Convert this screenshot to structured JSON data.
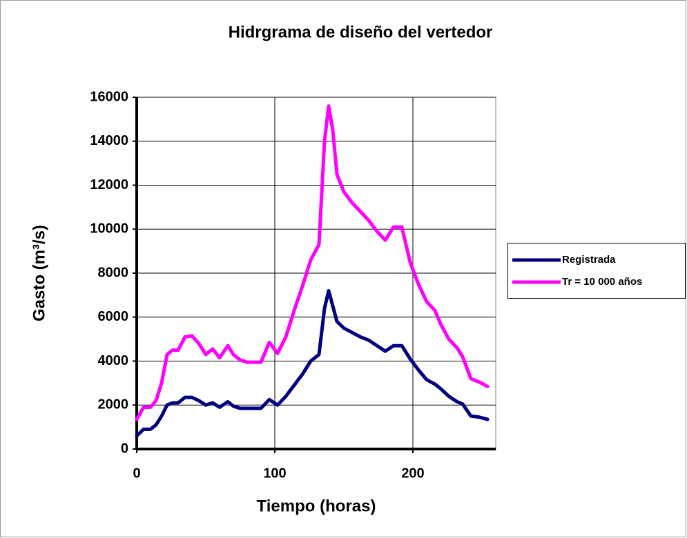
{
  "chart_data": {
    "type": "line",
    "title": "Hidrgrama de diseño del vertedor",
    "x_label": "Tiempo (horas)",
    "y_label": "Gasto (m³/s)",
    "x": [
      0,
      5,
      10,
      14,
      18,
      22,
      26,
      30,
      35,
      40,
      45,
      50,
      55,
      60,
      66,
      70,
      75,
      80,
      85,
      90,
      96,
      102,
      108,
      114,
      120,
      126,
      132,
      136,
      139,
      142,
      145,
      150,
      156,
      162,
      168,
      174,
      180,
      186,
      192,
      198,
      204,
      210,
      216,
      220,
      226,
      232,
      236,
      242,
      248,
      254
    ],
    "series": [
      {
        "name": "Registrada",
        "color": "#000080",
        "values": [
          600,
          900,
          900,
          1100,
          1500,
          2000,
          2100,
          2100,
          2350,
          2350,
          2200,
          2000,
          2100,
          1900,
          2150,
          1950,
          1850,
          1850,
          1850,
          1850,
          2250,
          2000,
          2400,
          2900,
          3400,
          4000,
          4300,
          6400,
          7200,
          6500,
          5800,
          5500,
          5300,
          5100,
          4950,
          4700,
          4450,
          4700,
          4700,
          4100,
          3600,
          3150,
          2950,
          2750,
          2400,
          2150,
          2050,
          1500,
          1450,
          1350
        ]
      },
      {
        "name": "Tr = 10 000 años",
        "color": "#ff00ff",
        "values": [
          1350,
          1900,
          1900,
          2200,
          3000,
          4300,
          4500,
          4500,
          5100,
          5150,
          4800,
          4300,
          4550,
          4150,
          4700,
          4300,
          4050,
          3950,
          3950,
          3950,
          4850,
          4350,
          5100,
          6300,
          7400,
          8600,
          9300,
          14000,
          15600,
          14500,
          12500,
          11700,
          11200,
          10800,
          10400,
          9900,
          9500,
          10100,
          10100,
          8500,
          7500,
          6700,
          6300,
          5700,
          5000,
          4600,
          4200,
          3200,
          3050,
          2850
        ]
      }
    ],
    "xlim": [
      0,
      260
    ],
    "xticks": [
      0,
      100,
      200
    ],
    "ylim": [
      0,
      16000
    ],
    "yticks": [
      0,
      2000,
      4000,
      6000,
      8000,
      10000,
      12000,
      14000,
      16000
    ],
    "grid": true,
    "legend": "right"
  }
}
